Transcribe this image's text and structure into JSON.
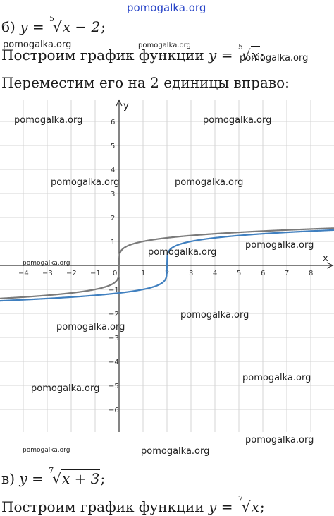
{
  "watermark_top": "pomogalka.org",
  "watermark": "pomogalka.org",
  "part_b": {
    "label": "б)",
    "lhs": "y",
    "eq": "=",
    "root_index": "5",
    "radicand": "x − 2",
    "suffix": ";"
  },
  "step1": {
    "text": "Построим график функции",
    "lhs": "y",
    "eq": "=",
    "root_index": "5",
    "radicand": "x",
    "suffix": ";"
  },
  "step2": {
    "text": "Переместим его на 2 единицы вправо:"
  },
  "part_v": {
    "label": "в)",
    "lhs": "y",
    "eq": "=",
    "root_index": "7",
    "radicand": "x + 3",
    "suffix": ";"
  },
  "step3": {
    "text": "Построим график функции",
    "lhs": "y",
    "eq": "=",
    "root_index": "7",
    "radicand": "x",
    "suffix": ";"
  },
  "chart_data": {
    "type": "line",
    "xlabel": "x",
    "ylabel": "y",
    "xlim": [
      -5,
      9
    ],
    "ylim": [
      -7,
      7
    ],
    "x_ticks": [
      "−4",
      "−3",
      "−2",
      "−1",
      "0",
      "1",
      "2",
      "3",
      "4",
      "5",
      "6",
      "7",
      "8"
    ],
    "y_ticks": [
      "6",
      "5",
      "4",
      "3",
      "2",
      "1",
      "−1",
      "−2",
      "−3",
      "−4",
      "−5",
      "−6"
    ],
    "grid": true,
    "series": [
      {
        "color": "#7a7a7a",
        "formula": "y = (x)^(1/5)",
        "shift": 0
      },
      {
        "color": "#3f7fbf",
        "formula": "y = (x − 2)^(1/5)",
        "shift": 2
      }
    ]
  }
}
